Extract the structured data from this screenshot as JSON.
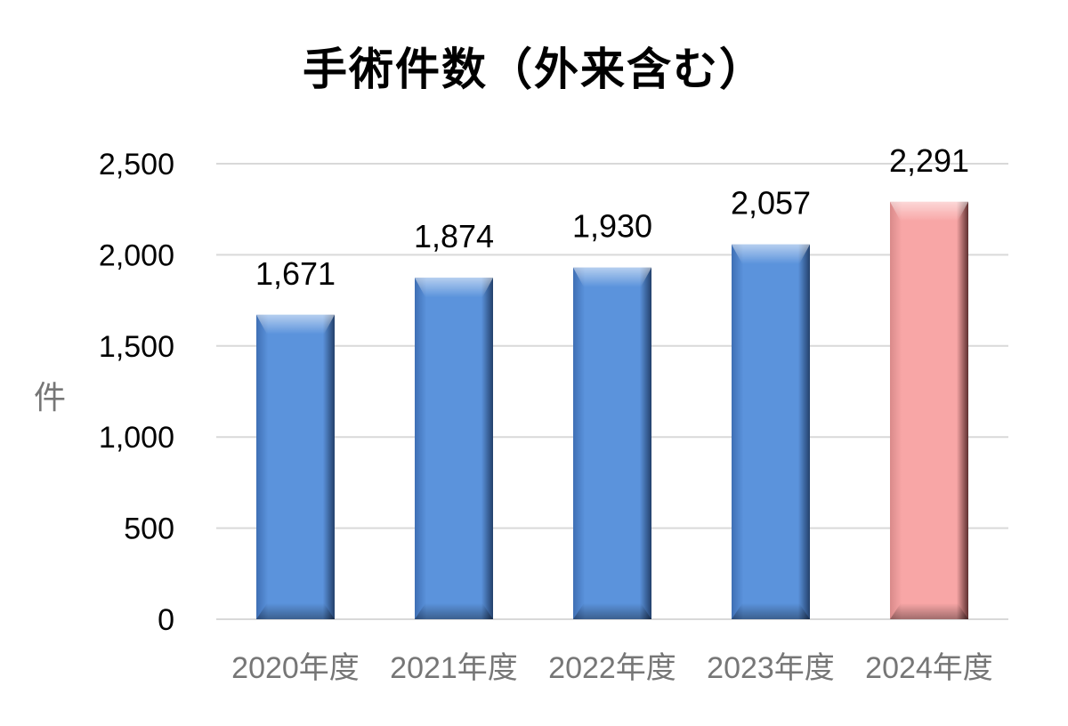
{
  "chart_data": {
    "type": "bar",
    "title": "手術件数（外来含む）",
    "ylabel": "件",
    "xlabel": "",
    "categories": [
      "2020年度",
      "2021年度",
      "2022年度",
      "2023年度",
      "2024年度"
    ],
    "values": [
      1671,
      1874,
      1930,
      2057,
      2291
    ],
    "data_labels": [
      "1,671",
      "1,874",
      "1,930",
      "2,057",
      "2,291"
    ],
    "ylim": [
      0,
      2500
    ],
    "yticks": [
      0,
      500,
      1000,
      1500,
      2000,
      2500
    ],
    "ytick_labels": [
      "0",
      "500",
      "1,000",
      "1,500",
      "2,000",
      "2,500"
    ],
    "grid": true,
    "legend": "none",
    "colors": {
      "default_bar": "#5b8fd6",
      "highlight_bar": "#f7a3a3",
      "highlight_category": "2024年度",
      "grid": "#d9d9d9",
      "tick_label": "#000000",
      "category_label": "#767676"
    }
  }
}
